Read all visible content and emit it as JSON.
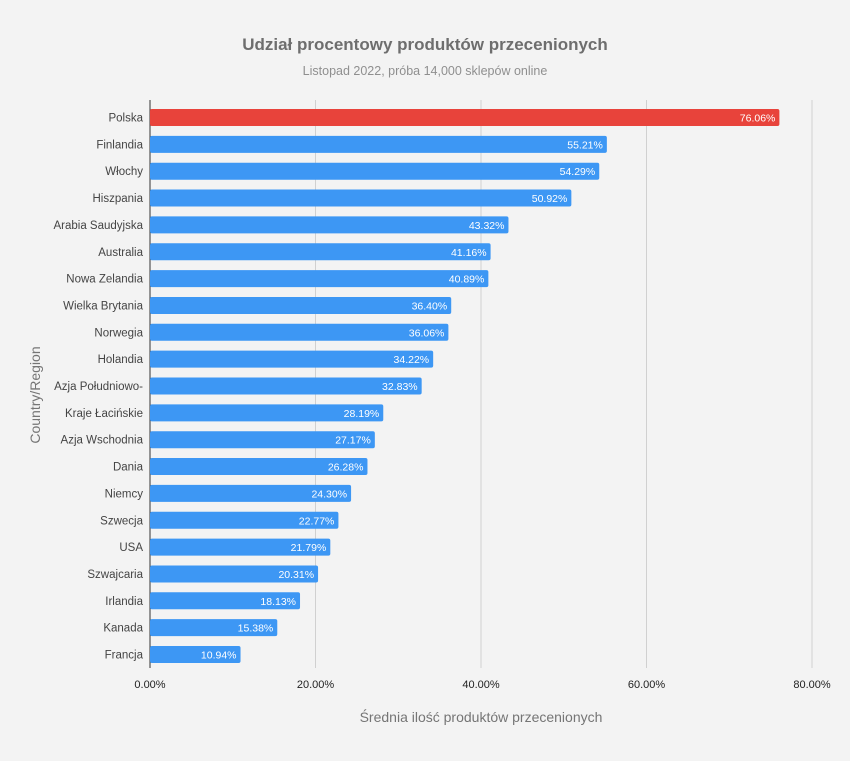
{
  "chart_data": {
    "type": "bar",
    "orientation": "horizontal",
    "title": "Udział procentowy produktów przecenionych",
    "subtitle": "Listopad 2022, próba 14,000 sklepów online",
    "xlabel": "Średnia ilość produktów przecenionych",
    "ylabel": "Country/Region",
    "xlim": [
      0,
      80
    ],
    "xticks": [
      0,
      20,
      40,
      60,
      80
    ],
    "xtick_labels": [
      "0.00%",
      "20.00%",
      "40.00%",
      "60.00%",
      "80.00%"
    ],
    "grid": true,
    "highlight_color": "#e8433b",
    "bar_color": "#3d97f4",
    "categories": [
      "Polska",
      "Finlandia",
      "Włochy",
      "Hiszpania",
      "Arabia Saudyjska",
      "Australia",
      "Nowa Zelandia",
      "Wielka Brytania",
      "Norwegia",
      "Holandia",
      "Azja Południowo-",
      "Kraje Łacińskie",
      "Azja Wschodnia",
      "Dania",
      "Niemcy",
      "Szwecja",
      "USA",
      "Szwajcaria",
      "Irlandia",
      "Kanada",
      "Francja"
    ],
    "values": [
      76.06,
      55.21,
      54.29,
      50.92,
      43.32,
      41.16,
      40.89,
      36.4,
      36.06,
      34.22,
      32.83,
      28.19,
      27.17,
      26.28,
      24.3,
      22.77,
      21.79,
      20.31,
      18.13,
      15.38,
      10.94
    ],
    "value_labels": [
      "76.06%",
      "55.21%",
      "54.29%",
      "50.92%",
      "43.32%",
      "41.16%",
      "40.89%",
      "36.40%",
      "36.06%",
      "34.22%",
      "32.83%",
      "28.19%",
      "27.17%",
      "26.28%",
      "24.30%",
      "22.77%",
      "21.79%",
      "20.31%",
      "18.13%",
      "15.38%",
      "10.94%"
    ],
    "highlight": [
      "Polska"
    ]
  }
}
